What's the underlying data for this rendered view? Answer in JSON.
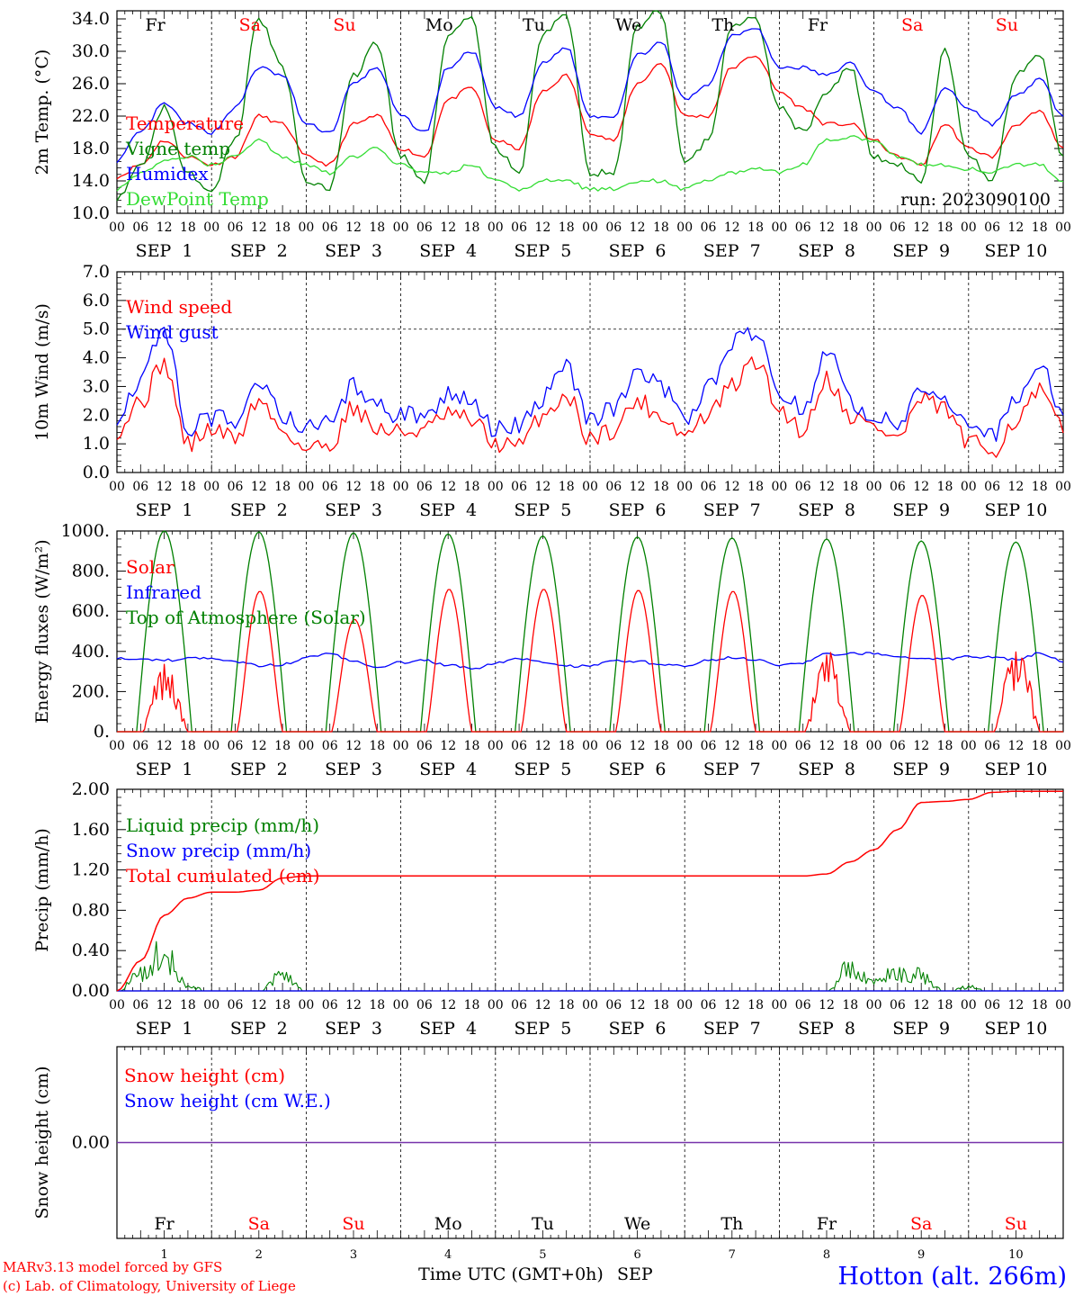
{
  "days": {
    "weekdays": [
      "Fr",
      "Sa",
      "Su",
      "Mo",
      "Tu",
      "We",
      "Th",
      "Fr",
      "Sa",
      "Su"
    ],
    "weekend_flags": [
      false,
      true,
      true,
      false,
      false,
      false,
      false,
      false,
      true,
      true
    ],
    "dates": [
      "SEP  1",
      "SEP  2",
      "SEP  3",
      "SEP  4",
      "SEP  5",
      "SEP  6",
      "SEP  7",
      "SEP  8",
      "SEP  9",
      "SEP 10"
    ],
    "numbers": [
      "1",
      "2",
      "3",
      "4",
      "5",
      "6",
      "7",
      "8",
      "9",
      "10"
    ],
    "hours": [
      "00",
      "06",
      "12",
      "18"
    ],
    "end_hour": "00"
  },
  "colors": {
    "red": "#ff0000",
    "green": "#008000",
    "blue": "#0000ff",
    "lightgreen": "#33dd33",
    "purple": "#7733aa"
  },
  "footer": {
    "model": "MARv3.13 model forced by GFS",
    "lab": "(c) Lab. of Climatology, University of Liege",
    "xlabel": "Time UTC (GMT+0h)",
    "month": "SEP",
    "station": "Hotton (alt. 266m)"
  },
  "chart_data": [
    {
      "type": "line",
      "ylabel": "2m Temp. (°C)",
      "ylim": [
        10,
        35
      ],
      "yticks": [
        "10.0",
        "14.0",
        "18.0",
        "22.0",
        "26.0",
        "30.0",
        "34.0"
      ],
      "run_label": "run: 2023090100",
      "x_hours": [
        0,
        6,
        12,
        18,
        24,
        30,
        36,
        42,
        48,
        54,
        60,
        66,
        72,
        78,
        84,
        90,
        96,
        102,
        108,
        114,
        120,
        126,
        132,
        138,
        144,
        150,
        156,
        162,
        168,
        174,
        180,
        186,
        192,
        198,
        204,
        210,
        216,
        222,
        228,
        234,
        240
      ],
      "series": [
        {
          "name": "Temperature",
          "color": "red",
          "values": [
            14.5,
            16,
            19,
            17,
            16,
            17,
            22,
            21,
            17,
            16,
            21,
            22,
            18,
            17,
            24,
            25.5,
            19,
            18,
            25,
            27,
            20,
            19,
            26,
            28.5,
            22,
            22,
            28,
            29.5,
            25,
            23,
            21,
            21,
            19,
            17,
            16,
            21,
            18,
            17,
            21,
            22.5,
            18
          ]
        },
        {
          "name": "Vigne temp",
          "color": "green",
          "values": [
            12,
            16,
            23,
            15,
            13,
            19,
            34,
            28,
            14,
            13,
            27,
            31,
            17,
            14,
            32,
            34,
            18,
            15,
            32,
            34.5,
            15,
            15,
            33,
            35,
            16,
            19,
            33,
            34,
            23,
            20,
            25,
            28,
            17,
            16,
            14,
            30,
            17,
            14,
            27,
            29.5,
            17
          ]
        },
        {
          "name": "Humidex",
          "color": "blue",
          "values": [
            16.5,
            20,
            23.5,
            21,
            20,
            23,
            28,
            27,
            21,
            20,
            26,
            28,
            22,
            20,
            28,
            30,
            23,
            22,
            28.5,
            30.5,
            22,
            22,
            29.5,
            31,
            24,
            26,
            32,
            33,
            28,
            28,
            27,
            28.5,
            25,
            23,
            20,
            25.5,
            23,
            21,
            24.5,
            26.5,
            22
          ]
        },
        {
          "name": "DewPoint Temp",
          "color": "lightgreen",
          "values": [
            13,
            15,
            16.5,
            17,
            16,
            17,
            19,
            17,
            16,
            15,
            17,
            18,
            16,
            15,
            15,
            16,
            14,
            13,
            14,
            14,
            13,
            13,
            14,
            14,
            13,
            14,
            15,
            15.5,
            15,
            16,
            19,
            19.5,
            19,
            17,
            16,
            16,
            15.5,
            15,
            16,
            16,
            14
          ]
        }
      ]
    },
    {
      "type": "line",
      "ylabel": "10m Wind (m/s)",
      "ylim": [
        0,
        7
      ],
      "yticks": [
        "0.0",
        "1.0",
        "2.0",
        "3.0",
        "4.0",
        "5.0",
        "6.0",
        "7.0"
      ],
      "x_hours": [
        0,
        6,
        12,
        18,
        24,
        30,
        36,
        42,
        48,
        54,
        60,
        66,
        72,
        78,
        84,
        90,
        96,
        102,
        108,
        114,
        120,
        126,
        132,
        138,
        144,
        150,
        156,
        162,
        168,
        174,
        180,
        186,
        192,
        198,
        204,
        210,
        216,
        222,
        228,
        234,
        240
      ],
      "series": [
        {
          "name": "Wind speed",
          "color": "red",
          "values": [
            1.5,
            2.5,
            3.8,
            1.0,
            1.5,
            1.2,
            2.5,
            1.5,
            0.8,
            1.0,
            2.3,
            1.5,
            1.4,
            1.5,
            2.0,
            1.8,
            1.0,
            0.9,
            2.0,
            2.7,
            1.2,
            1.5,
            2.5,
            2.0,
            1.3,
            2.0,
            3.0,
            3.9,
            2.2,
            1.5,
            3.3,
            2.0,
            1.6,
            1.2,
            2.5,
            2.2,
            1.0,
            0.8,
            1.8,
            2.8,
            1.5
          ]
        },
        {
          "name": "Wind gust",
          "color": "blue",
          "values": [
            2.0,
            3.3,
            5.0,
            1.5,
            1.9,
            1.8,
            3.2,
            2.0,
            1.5,
            1.8,
            3.0,
            2.3,
            2.0,
            2.0,
            2.8,
            2.4,
            1.5,
            1.6,
            2.6,
            3.6,
            1.8,
            2.3,
            3.4,
            3.0,
            1.9,
            3.0,
            4.6,
            4.8,
            2.8,
            2.2,
            4.3,
            2.5,
            2.0,
            1.8,
            3.0,
            2.7,
            1.5,
            1.3,
            2.5,
            3.7,
            2.2
          ]
        }
      ]
    },
    {
      "type": "line",
      "ylabel": "Energy fluxes (W/m²)",
      "ylim": [
        0,
        1000
      ],
      "yticks": [
        "0.",
        "200.",
        "400.",
        "600.",
        "800.",
        "1000."
      ],
      "series": [
        {
          "name": "Solar",
          "color": "red",
          "peaks": [
            340,
            700,
            560,
            710,
            710,
            705,
            700,
            390,
            680,
            460
          ]
        },
        {
          "name": "Infrared",
          "color": "blue",
          "values": [
            370,
            360,
            355,
            365,
            370,
            345,
            330,
            335,
            370,
            390,
            350,
            325,
            345,
            355,
            330,
            315,
            340,
            365,
            345,
            325,
            330,
            355,
            350,
            335,
            330,
            355,
            370,
            360,
            335,
            345,
            385,
            390,
            390,
            380,
            365,
            360,
            375,
            370,
            360,
            390,
            350
          ]
        },
        {
          "name": "Top of Atmosphere (Solar)",
          "color": "green",
          "peaks": [
            1000,
            995,
            990,
            985,
            975,
            970,
            965,
            960,
            950,
            945
          ]
        }
      ]
    },
    {
      "type": "line",
      "ylabel": "Precip (mm/h)",
      "ylim": [
        0,
        2.0
      ],
      "yticks": [
        "0.00",
        "0.40",
        "0.80",
        "1.20",
        "1.60",
        "2.00"
      ],
      "series": [
        {
          "name": "Liquid precip (mm/h)",
          "color": "green",
          "values": [
            0,
            0.2,
            0.5,
            0.05,
            0,
            0,
            0,
            0.2,
            0,
            0,
            0,
            0,
            0,
            0,
            0,
            0,
            0,
            0,
            0,
            0,
            0,
            0,
            0,
            0,
            0,
            0,
            0,
            0,
            0,
            0,
            0,
            0.35,
            0.1,
            0.25,
            0.2,
            0,
            0.05,
            0,
            0,
            0,
            0
          ]
        },
        {
          "name": "Snow precip (mm/h)",
          "color": "blue",
          "values": [
            0,
            0,
            0,
            0,
            0,
            0,
            0,
            0,
            0,
            0,
            0,
            0,
            0,
            0,
            0,
            0,
            0,
            0,
            0,
            0,
            0,
            0,
            0,
            0,
            0,
            0,
            0,
            0,
            0,
            0,
            0,
            0,
            0,
            0,
            0,
            0,
            0,
            0,
            0,
            0,
            0
          ]
        },
        {
          "name": "Total cumulated (cm)",
          "color": "red",
          "values": [
            0,
            0.3,
            0.75,
            0.92,
            0.98,
            0.98,
            1.0,
            1.12,
            1.14,
            1.14,
            1.14,
            1.14,
            1.14,
            1.14,
            1.14,
            1.14,
            1.14,
            1.14,
            1.14,
            1.14,
            1.14,
            1.14,
            1.14,
            1.14,
            1.14,
            1.14,
            1.14,
            1.14,
            1.14,
            1.14,
            1.16,
            1.28,
            1.4,
            1.6,
            1.87,
            1.88,
            1.9,
            1.97,
            1.98,
            1.98,
            1.98
          ]
        }
      ]
    },
    {
      "type": "line",
      "ylabel": "Snow height (cm)",
      "yticks": [
        "0.00"
      ],
      "series": [
        {
          "name": "Snow height (cm)",
          "color": "red",
          "values": [
            0,
            0
          ]
        },
        {
          "name": "Snow height (cm W.E.)",
          "color": "blue",
          "values": [
            0,
            0
          ]
        }
      ]
    }
  ]
}
